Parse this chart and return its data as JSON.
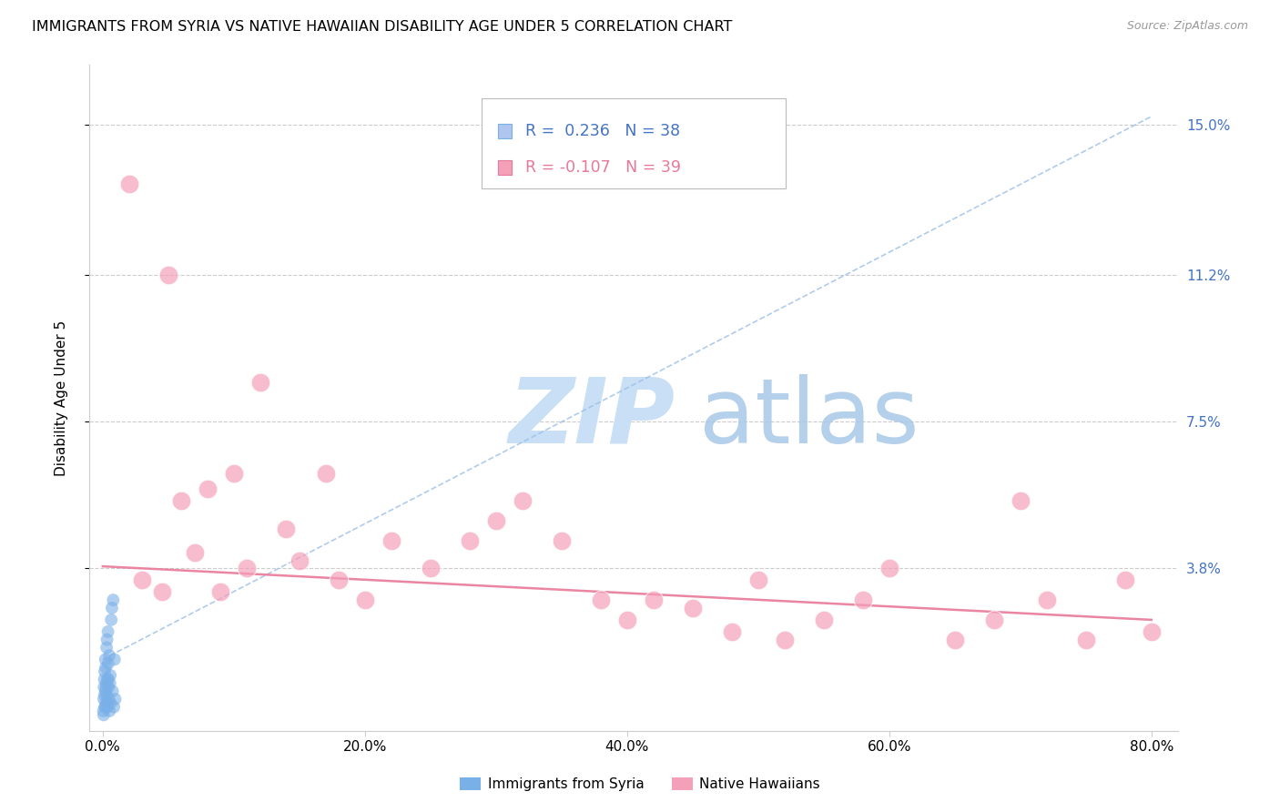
{
  "title": "IMMIGRANTS FROM SYRIA VS NATIVE HAWAIIAN DISABILITY AGE UNDER 5 CORRELATION CHART",
  "source": "Source: ZipAtlas.com",
  "ylabel": "Disability Age Under 5",
  "x_tick_labels": [
    "0.0%",
    "20.0%",
    "40.0%",
    "60.0%",
    "80.0%"
  ],
  "x_tick_values": [
    0.0,
    20.0,
    40.0,
    60.0,
    80.0
  ],
  "y_tick_labels": [
    "15.0%",
    "11.2%",
    "7.5%",
    "3.8%"
  ],
  "y_tick_values": [
    15.0,
    11.2,
    7.5,
    3.8
  ],
  "xlim": [
    -1.0,
    82.0
  ],
  "ylim": [
    -0.3,
    16.5
  ],
  "watermark_zip": "ZIP",
  "watermark_atlas": "atlas",
  "watermark_zip_color": "#c8dff5",
  "watermark_atlas_color": "#a8c8e8",
  "background_color": "#ffffff",
  "grid_color": "#cccccc",
  "syria_color": "#7ab0e8",
  "hawaii_color": "#f4a0b8",
  "syria_trend_color": "#9bbfe8",
  "hawaii_trend_color": "#e87898",
  "legend_box_color": "#e8e8e8",
  "legend_blue": "#4472c4",
  "legend_pink": "#e87898",
  "syria_R": "0.236",
  "syria_N": "38",
  "hawaii_R": "-0.107",
  "hawaii_N": "39",
  "syria_scatter_x": [
    0.05,
    0.08,
    0.1,
    0.12,
    0.15,
    0.18,
    0.2,
    0.22,
    0.25,
    0.28,
    0.3,
    0.32,
    0.35,
    0.38,
    0.4,
    0.42,
    0.45,
    0.48,
    0.5,
    0.52,
    0.55,
    0.58,
    0.6,
    0.65,
    0.7,
    0.75,
    0.8,
    0.85,
    0.9,
    0.95,
    0.07,
    0.13,
    0.17,
    0.23,
    0.27,
    0.33,
    0.37,
    0.43
  ],
  "syria_scatter_y": [
    0.2,
    0.5,
    0.8,
    1.0,
    1.2,
    0.3,
    1.5,
    0.7,
    0.4,
    0.9,
    1.8,
    0.6,
    1.0,
    0.3,
    2.2,
    1.4,
    0.8,
    0.5,
    1.6,
    0.2,
    0.9,
    1.1,
    0.4,
    2.5,
    2.8,
    0.7,
    3.0,
    0.3,
    1.5,
    0.5,
    0.1,
    0.6,
    0.3,
    1.3,
    0.8,
    2.0,
    0.4,
    1.0
  ],
  "hawaii_scatter_x": [
    2.0,
    3.0,
    4.5,
    5.0,
    6.0,
    7.0,
    8.0,
    9.0,
    10.0,
    11.0,
    12.0,
    14.0,
    15.0,
    17.0,
    18.0,
    20.0,
    22.0,
    25.0,
    28.0,
    30.0,
    32.0,
    35.0,
    38.0,
    40.0,
    42.0,
    45.0,
    48.0,
    50.0,
    52.0,
    55.0,
    58.0,
    60.0,
    65.0,
    68.0,
    70.0,
    72.0,
    75.0,
    78.0,
    80.0
  ],
  "hawaii_scatter_y": [
    13.5,
    3.5,
    3.2,
    11.2,
    5.5,
    4.2,
    5.8,
    3.2,
    6.2,
    3.8,
    8.5,
    4.8,
    4.0,
    6.2,
    3.5,
    3.0,
    4.5,
    3.8,
    4.5,
    5.0,
    5.5,
    4.5,
    3.0,
    2.5,
    3.0,
    2.8,
    2.2,
    3.5,
    2.0,
    2.5,
    3.0,
    3.8,
    2.0,
    2.5,
    5.5,
    3.0,
    2.0,
    3.5,
    2.2
  ],
  "syria_trend_x0": 0.0,
  "syria_trend_y0": 1.5,
  "syria_trend_x1": 80.0,
  "syria_trend_y1": 15.2,
  "hawaii_trend_x0": 0.0,
  "hawaii_trend_y0": 3.85,
  "hawaii_trend_x1": 80.0,
  "hawaii_trend_y1": 2.5,
  "title_fontsize": 11.5,
  "label_fontsize": 11,
  "tick_fontsize": 11,
  "legend_fontsize": 12.5
}
